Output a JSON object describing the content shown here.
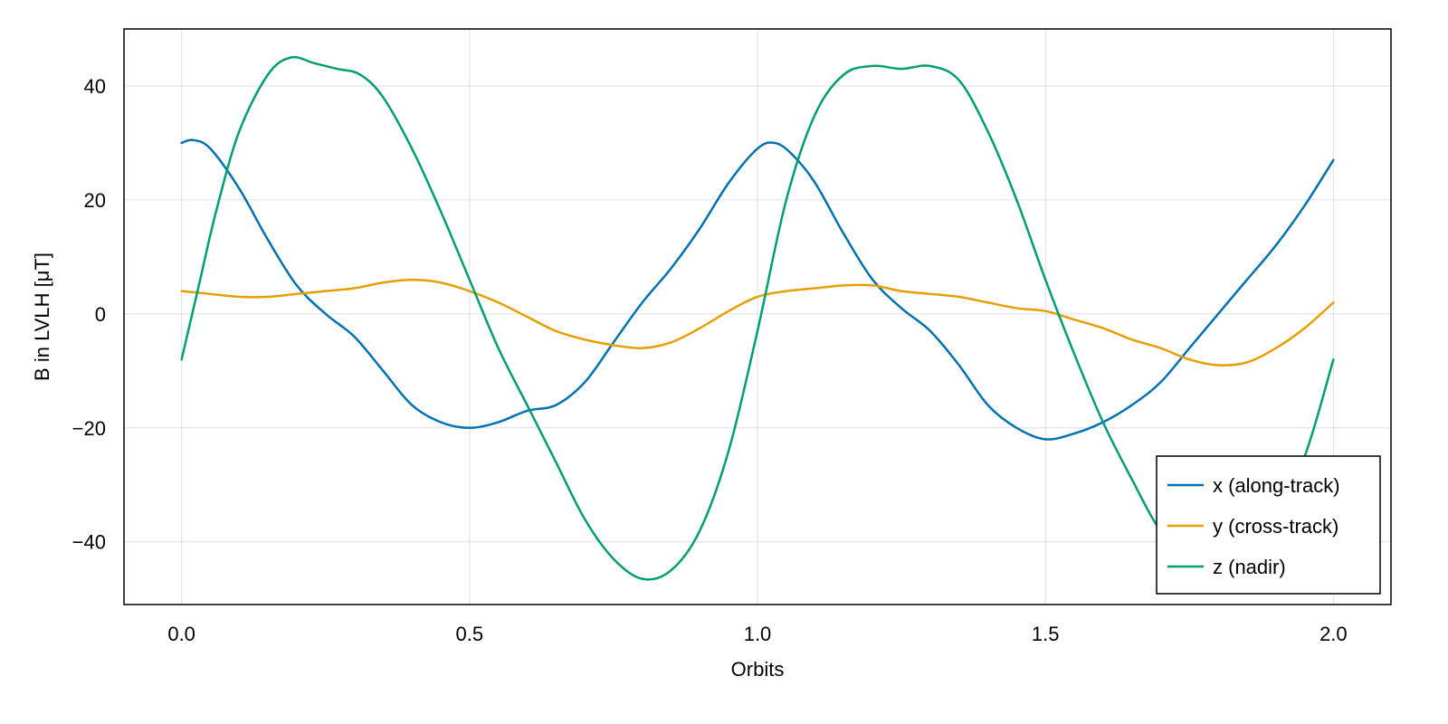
{
  "chart_data": {
    "type": "line",
    "title": "",
    "xlabel": "Orbits",
    "ylabel": "B in LVLH [μT]",
    "xlim": [
      -0.1,
      2.1
    ],
    "ylim": [
      -51,
      50
    ],
    "xticks": [
      0.0,
      0.5,
      1.0,
      1.5,
      2.0
    ],
    "xtick_labels": [
      "0.0",
      "0.5",
      "1.0",
      "1.5",
      "2.0"
    ],
    "yticks": [
      -40,
      -20,
      0,
      20,
      40
    ],
    "ytick_labels": [
      "−40",
      "−20",
      "0",
      "20",
      "40"
    ],
    "grid": true,
    "legend_position": "bottom-right",
    "series": [
      {
        "name": "x (along-track)",
        "color": "#0072B2",
        "points": [
          [
            0.0,
            30
          ],
          [
            0.02,
            30.5
          ],
          [
            0.05,
            29
          ],
          [
            0.1,
            22
          ],
          [
            0.15,
            13
          ],
          [
            0.2,
            5
          ],
          [
            0.25,
            0
          ],
          [
            0.3,
            -4
          ],
          [
            0.35,
            -10
          ],
          [
            0.4,
            -16
          ],
          [
            0.45,
            -19
          ],
          [
            0.5,
            -20
          ],
          [
            0.55,
            -19
          ],
          [
            0.6,
            -17
          ],
          [
            0.65,
            -16
          ],
          [
            0.7,
            -12
          ],
          [
            0.75,
            -5
          ],
          [
            0.8,
            2
          ],
          [
            0.85,
            8
          ],
          [
            0.9,
            15
          ],
          [
            0.95,
            23
          ],
          [
            1.0,
            29
          ],
          [
            1.03,
            30
          ],
          [
            1.06,
            28
          ],
          [
            1.1,
            23
          ],
          [
            1.15,
            14
          ],
          [
            1.2,
            6
          ],
          [
            1.25,
            1
          ],
          [
            1.3,
            -3
          ],
          [
            1.35,
            -9
          ],
          [
            1.4,
            -16
          ],
          [
            1.45,
            -20
          ],
          [
            1.5,
            -22
          ],
          [
            1.55,
            -21
          ],
          [
            1.6,
            -19
          ],
          [
            1.65,
            -16
          ],
          [
            1.7,
            -12
          ],
          [
            1.75,
            -6
          ],
          [
            1.8,
            0
          ],
          [
            1.85,
            6
          ],
          [
            1.9,
            12
          ],
          [
            1.95,
            19
          ],
          [
            2.0,
            27
          ]
        ]
      },
      {
        "name": "y (cross-track)",
        "color": "#E69F00",
        "points": [
          [
            0.0,
            4
          ],
          [
            0.05,
            3.5
          ],
          [
            0.1,
            3
          ],
          [
            0.15,
            3
          ],
          [
            0.2,
            3.5
          ],
          [
            0.25,
            4
          ],
          [
            0.3,
            4.5
          ],
          [
            0.35,
            5.5
          ],
          [
            0.4,
            6
          ],
          [
            0.45,
            5.5
          ],
          [
            0.5,
            4
          ],
          [
            0.55,
            2
          ],
          [
            0.6,
            -0.5
          ],
          [
            0.65,
            -3
          ],
          [
            0.7,
            -4.5
          ],
          [
            0.75,
            -5.5
          ],
          [
            0.8,
            -6
          ],
          [
            0.85,
            -5
          ],
          [
            0.9,
            -2.5
          ],
          [
            0.95,
            0.5
          ],
          [
            1.0,
            3
          ],
          [
            1.05,
            4
          ],
          [
            1.1,
            4.5
          ],
          [
            1.15,
            5
          ],
          [
            1.2,
            5
          ],
          [
            1.25,
            4
          ],
          [
            1.3,
            3.5
          ],
          [
            1.35,
            3
          ],
          [
            1.4,
            2
          ],
          [
            1.45,
            1
          ],
          [
            1.5,
            0.5
          ],
          [
            1.55,
            -1
          ],
          [
            1.6,
            -2.5
          ],
          [
            1.65,
            -4.5
          ],
          [
            1.7,
            -6
          ],
          [
            1.75,
            -8
          ],
          [
            1.8,
            -9
          ],
          [
            1.85,
            -8.5
          ],
          [
            1.9,
            -6
          ],
          [
            1.95,
            -2.5
          ],
          [
            2.0,
            2
          ]
        ]
      },
      {
        "name": "z (nadir)",
        "color": "#009E73",
        "points": [
          [
            0.0,
            -8
          ],
          [
            0.03,
            5
          ],
          [
            0.06,
            18
          ],
          [
            0.1,
            32
          ],
          [
            0.15,
            42
          ],
          [
            0.19,
            45
          ],
          [
            0.23,
            44
          ],
          [
            0.27,
            43
          ],
          [
            0.31,
            42
          ],
          [
            0.35,
            38
          ],
          [
            0.4,
            29
          ],
          [
            0.45,
            18
          ],
          [
            0.5,
            6
          ],
          [
            0.55,
            -6
          ],
          [
            0.6,
            -16
          ],
          [
            0.65,
            -26
          ],
          [
            0.7,
            -36
          ],
          [
            0.75,
            -43
          ],
          [
            0.8,
            -46.5
          ],
          [
            0.85,
            -45
          ],
          [
            0.9,
            -38
          ],
          [
            0.95,
            -24
          ],
          [
            1.0,
            -3
          ],
          [
            1.05,
            20
          ],
          [
            1.1,
            35
          ],
          [
            1.15,
            42
          ],
          [
            1.2,
            43.5
          ],
          [
            1.25,
            43
          ],
          [
            1.3,
            43.5
          ],
          [
            1.35,
            41
          ],
          [
            1.4,
            32
          ],
          [
            1.45,
            20
          ],
          [
            1.5,
            6
          ],
          [
            1.55,
            -7
          ],
          [
            1.6,
            -19
          ],
          [
            1.65,
            -29
          ],
          [
            1.7,
            -38
          ],
          [
            1.75,
            -42
          ],
          [
            1.8,
            -42
          ],
          [
            1.85,
            -40
          ],
          [
            1.9,
            -34
          ],
          [
            1.95,
            -25
          ],
          [
            2.0,
            -8
          ]
        ]
      }
    ]
  }
}
